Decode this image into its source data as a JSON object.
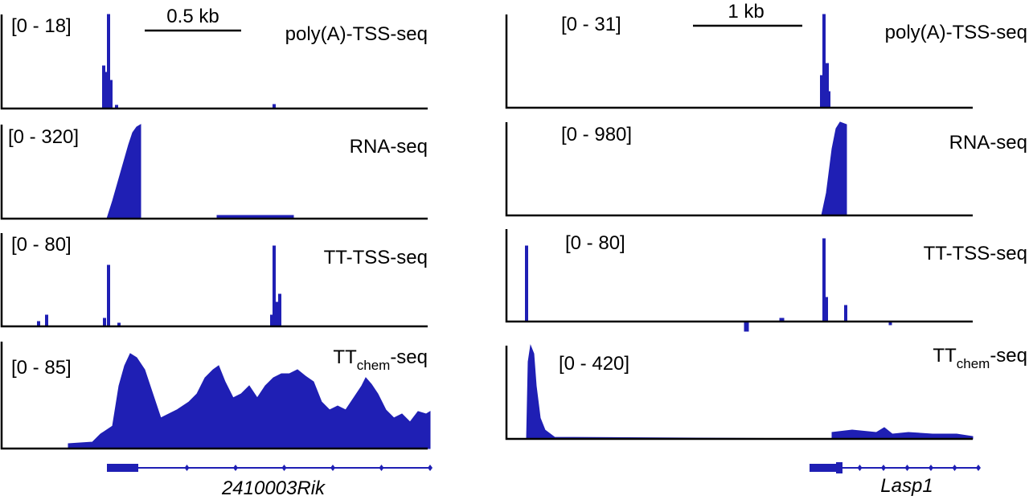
{
  "panels": [
    {
      "scale_bar": "0.5 kb",
      "tracks": [
        {
          "range": "[0 - 18]",
          "name": "poly(A)-TSS-seq"
        },
        {
          "range": "[0 - 320]",
          "name": "RNA-seq"
        },
        {
          "range": "[0 - 80]",
          "name": "TT-TSS-seq"
        },
        {
          "range": "[0 - 85]",
          "name_main": "TT",
          "name_sub": "chem",
          "name_suffix": "-seq"
        }
      ],
      "gene": "2410003Rik"
    },
    {
      "scale_bar": "1 kb",
      "tracks": [
        {
          "range": "[0 - 31]",
          "name": "poly(A)-TSS-seq"
        },
        {
          "range": "[0 - 980]",
          "name": "RNA-seq"
        },
        {
          "range": "[0 - 80]",
          "name": "TT-TSS-seq"
        },
        {
          "range": "[0 - 420]",
          "name_main": "TT",
          "name_sub": "chem",
          "name_suffix": "-seq"
        }
      ],
      "gene": "Lasp1"
    }
  ]
}
